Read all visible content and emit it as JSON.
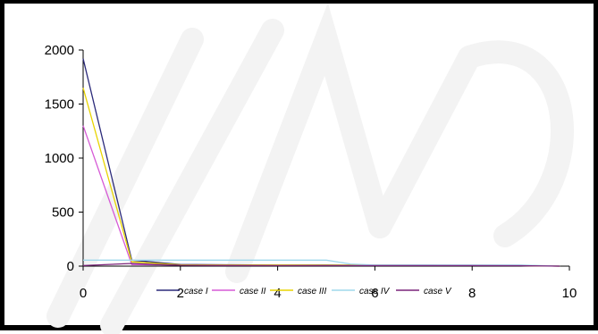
{
  "chart_data": {
    "type": "line",
    "title": "",
    "xlabel": "",
    "ylabel": "",
    "xlim": [
      0,
      10
    ],
    "ylim": [
      0,
      2000
    ],
    "x_ticks": [
      0,
      2,
      4,
      6,
      8,
      10
    ],
    "y_ticks": [
      0,
      500,
      1000,
      1500,
      2000
    ],
    "x_tick_labels": [
      "0",
      "2",
      "4",
      "6",
      "8",
      "10"
    ],
    "y_tick_labels": [
      "0",
      "500",
      "1000",
      "1500",
      "2000"
    ],
    "grid": false,
    "legend_position": "bottom",
    "series": [
      {
        "name": "case I",
        "color": "#2b2a7a",
        "points": [
          [
            0,
            1920
          ],
          [
            1,
            55
          ],
          [
            2,
            15
          ],
          [
            3,
            12
          ],
          [
            4,
            10
          ],
          [
            5,
            10
          ],
          [
            6,
            8
          ],
          [
            7,
            8
          ],
          [
            8,
            7
          ],
          [
            9,
            6
          ],
          [
            9.8,
            0
          ]
        ]
      },
      {
        "name": "case II",
        "color": "#d65ad6",
        "points": [
          [
            0,
            1300
          ],
          [
            1,
            15
          ],
          [
            2,
            10
          ],
          [
            3,
            8
          ],
          [
            4,
            8
          ],
          [
            5,
            7
          ],
          [
            6,
            6
          ],
          [
            7,
            6
          ],
          [
            8,
            5
          ],
          [
            9,
            5
          ],
          [
            9.8,
            0
          ]
        ]
      },
      {
        "name": "case III",
        "color": "#e8d400",
        "points": [
          [
            0,
            1650
          ],
          [
            1,
            40
          ],
          [
            2,
            12
          ],
          [
            3,
            10
          ],
          [
            4,
            10
          ],
          [
            5,
            9
          ],
          [
            6,
            8
          ],
          [
            7,
            7
          ],
          [
            8,
            7
          ],
          [
            9,
            6
          ],
          [
            9.8,
            0
          ]
        ]
      },
      {
        "name": "case IV",
        "color": "#9fd8ec",
        "points": [
          [
            0,
            55
          ],
          [
            1,
            55
          ],
          [
            2,
            55
          ],
          [
            3,
            55
          ],
          [
            4,
            55
          ],
          [
            5,
            55
          ],
          [
            5.5,
            20
          ],
          [
            6,
            10
          ],
          [
            7,
            10
          ],
          [
            8,
            10
          ],
          [
            9,
            10
          ],
          [
            9.8,
            0
          ]
        ]
      },
      {
        "name": "case V",
        "color": "#7a237a",
        "points": [
          [
            0,
            5
          ],
          [
            1,
            25
          ],
          [
            1.5,
            15
          ],
          [
            2,
            8
          ],
          [
            3,
            6
          ],
          [
            4,
            5
          ],
          [
            5,
            5
          ],
          [
            6,
            5
          ],
          [
            7,
            5
          ],
          [
            8,
            5
          ],
          [
            9,
            4
          ],
          [
            9.8,
            0
          ]
        ]
      }
    ]
  }
}
